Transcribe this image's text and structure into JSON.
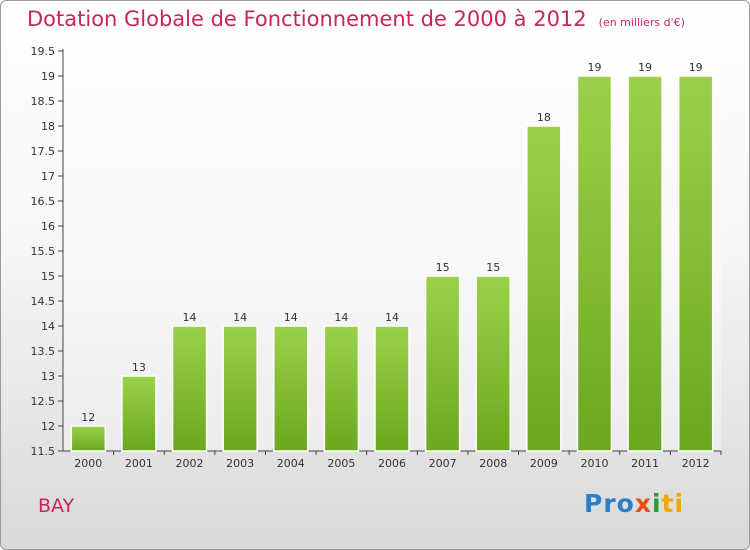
{
  "chart_data": {
    "type": "bar",
    "title": "Dotation Globale de Fonctionnement de 2000 à 2012",
    "subtitle": "(en milliers d'€)",
    "categories": [
      "2000",
      "2001",
      "2002",
      "2003",
      "2004",
      "2005",
      "2006",
      "2007",
      "2008",
      "2009",
      "2010",
      "2011",
      "2012"
    ],
    "values": [
      12,
      13,
      14,
      14,
      14,
      14,
      14,
      15,
      15,
      18,
      19,
      19,
      19
    ],
    "ylim": [
      11.5,
      19.5
    ],
    "yticks": [
      "11.5",
      "12",
      "12.5",
      "13",
      "13.5",
      "14",
      "14.5",
      "15",
      "15.5",
      "16",
      "16.5",
      "17",
      "17.5",
      "18",
      "18.5",
      "19",
      "19.5"
    ],
    "xlabel": "",
    "ylabel": "",
    "bar_color": "#6aa81e",
    "bar_color_light": "#9bd14a"
  },
  "footer": {
    "commune": "BAY",
    "logo_parts": [
      "Pro",
      "x",
      "i",
      "ti"
    ]
  }
}
